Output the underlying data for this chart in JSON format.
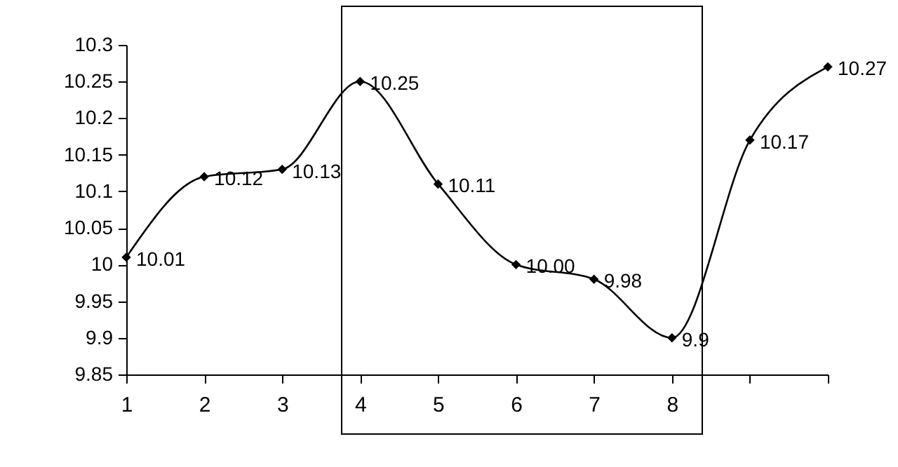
{
  "chart_data": {
    "type": "line",
    "categories": [
      "1",
      "2",
      "3",
      "4",
      "5",
      "6",
      "7",
      "8",
      null,
      null
    ],
    "series": [
      {
        "color": "#000000",
        "values": [
          10.01,
          10.12,
          10.13,
          10.25,
          10.11,
          10.0,
          9.98,
          9.9,
          10.17,
          10.27
        ],
        "value_labels": [
          "10.01",
          "10.12",
          "10.13",
          "10.25",
          "10.11",
          "10.00",
          "9.98",
          "9.9",
          "10.17",
          "10.27"
        ]
      }
    ],
    "ylim": [
      9.85,
      10.3
    ],
    "yticks": [
      9.85,
      9.9,
      9.95,
      10,
      10.05,
      10.1,
      10.15,
      10.2,
      10.25,
      10.3
    ],
    "marker": "diamond",
    "line_style": "solid",
    "grid": false
  }
}
